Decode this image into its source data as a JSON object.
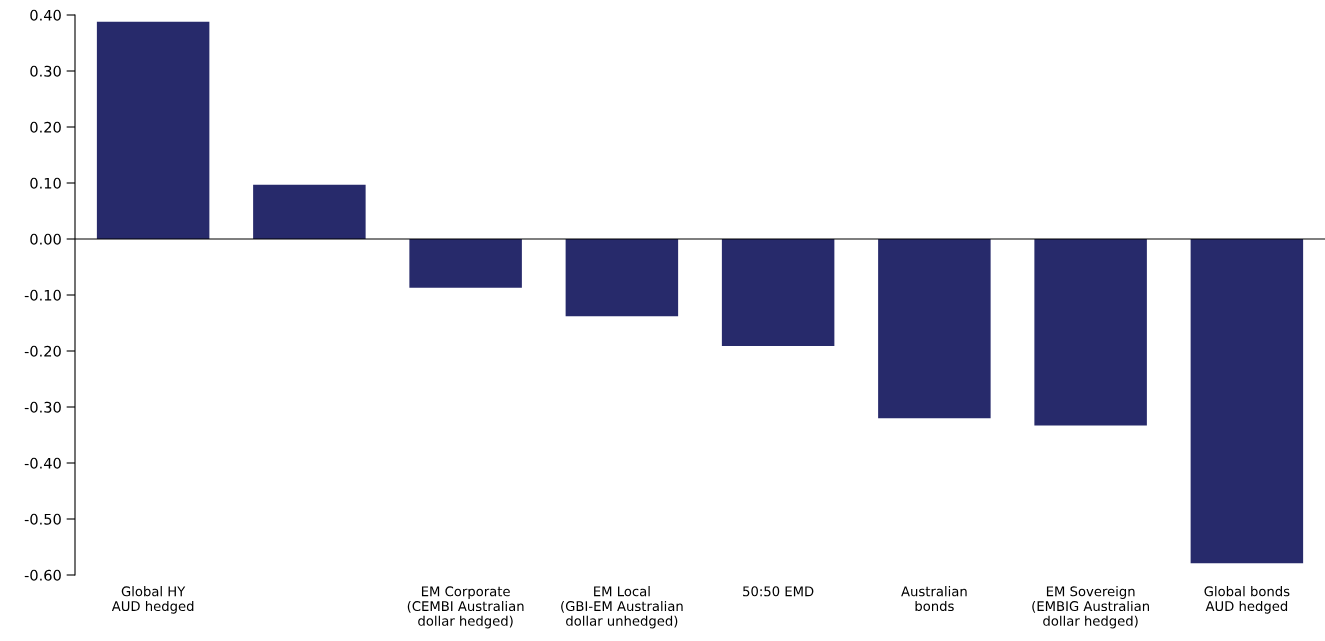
{
  "chart_data": {
    "type": "bar",
    "categories": [
      "Global HY\nAUD hedged",
      null,
      "EM Corporate\n(CEMBI Australian\ndollar hedged)",
      "EM Local\n(GBI-EM Australian\ndollar unhedged)",
      "50:50 EMD",
      "Australian\nbonds",
      "EM Sovereign\n(EMBIG Australian\ndollar hedged)",
      "Global bonds\nAUD hedged"
    ],
    "values": [
      0.388,
      0.097,
      -0.087,
      -0.138,
      -0.191,
      -0.32,
      -0.333,
      -0.579
    ],
    "color": "#272a6b",
    "ylim": [
      -0.6,
      0.4
    ],
    "yticks": [
      {
        "value": -0.6,
        "label": "-0.60"
      },
      {
        "value": -0.5,
        "label": "-0.50"
      },
      {
        "value": -0.4,
        "label": "-0.40"
      },
      {
        "value": -0.3,
        "label": "-0.30"
      },
      {
        "value": -0.2,
        "label": "-0.20"
      },
      {
        "value": -0.1,
        "label": "-0.10"
      },
      {
        "value": 0,
        "label": "0.00"
      },
      {
        "value": 0.1,
        "label": "0.10"
      },
      {
        "value": 0.2,
        "label": "0.20"
      },
      {
        "value": 0.3,
        "label": "0.30"
      },
      {
        "value": 0.4,
        "label": "0.40"
      }
    ],
    "ref_lines": [
      {
        "axis": "y",
        "value": 0,
        "color": "#000000"
      }
    ],
    "grid": false,
    "legend": false
  }
}
